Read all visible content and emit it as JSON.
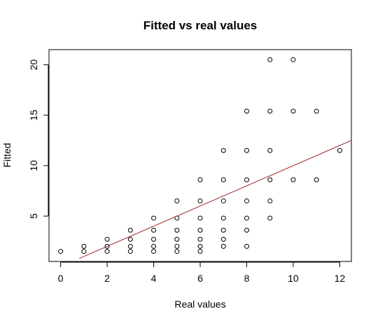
{
  "chart_data": {
    "type": "scatter",
    "title": "Fitted vs real values",
    "xlabel": "Real values",
    "ylabel": "Fitted",
    "xlim": [
      -0.5,
      12.5
    ],
    "ylim": [
      0.5,
      21.5
    ],
    "xticks": [
      0,
      2,
      4,
      6,
      8,
      10,
      12
    ],
    "yticks": [
      5,
      10,
      15,
      20
    ],
    "grid": false,
    "legend": "none",
    "points": [
      {
        "x": 0,
        "y": 1.5
      },
      {
        "x": 1,
        "y": 1.5
      },
      {
        "x": 1,
        "y": 2.0
      },
      {
        "x": 2,
        "y": 1.5
      },
      {
        "x": 2,
        "y": 2.0
      },
      {
        "x": 2,
        "y": 2.7
      },
      {
        "x": 3,
        "y": 1.5
      },
      {
        "x": 3,
        "y": 2.0
      },
      {
        "x": 3,
        "y": 2.7
      },
      {
        "x": 3,
        "y": 3.6
      },
      {
        "x": 4,
        "y": 1.5
      },
      {
        "x": 4,
        "y": 2.0
      },
      {
        "x": 4,
        "y": 2.7
      },
      {
        "x": 4,
        "y": 3.6
      },
      {
        "x": 4,
        "y": 4.8
      },
      {
        "x": 5,
        "y": 1.5
      },
      {
        "x": 5,
        "y": 2.0
      },
      {
        "x": 5,
        "y": 2.7
      },
      {
        "x": 5,
        "y": 3.6
      },
      {
        "x": 5,
        "y": 4.8
      },
      {
        "x": 5,
        "y": 6.5
      },
      {
        "x": 6,
        "y": 1.5
      },
      {
        "x": 6,
        "y": 2.0
      },
      {
        "x": 6,
        "y": 2.7
      },
      {
        "x": 6,
        "y": 3.6
      },
      {
        "x": 6,
        "y": 4.8
      },
      {
        "x": 6,
        "y": 6.5
      },
      {
        "x": 6,
        "y": 8.6
      },
      {
        "x": 7,
        "y": 2.0
      },
      {
        "x": 7,
        "y": 2.7
      },
      {
        "x": 7,
        "y": 3.6
      },
      {
        "x": 7,
        "y": 4.8
      },
      {
        "x": 7,
        "y": 6.5
      },
      {
        "x": 7,
        "y": 8.6
      },
      {
        "x": 7,
        "y": 11.5
      },
      {
        "x": 8,
        "y": 2.0
      },
      {
        "x": 8,
        "y": 3.6
      },
      {
        "x": 8,
        "y": 4.8
      },
      {
        "x": 8,
        "y": 6.5
      },
      {
        "x": 8,
        "y": 8.6
      },
      {
        "x": 8,
        "y": 11.5
      },
      {
        "x": 8,
        "y": 15.4
      },
      {
        "x": 9,
        "y": 4.8
      },
      {
        "x": 9,
        "y": 6.5
      },
      {
        "x": 9,
        "y": 8.6
      },
      {
        "x": 9,
        "y": 11.5
      },
      {
        "x": 9,
        "y": 15.4
      },
      {
        "x": 9,
        "y": 20.5
      },
      {
        "x": 10,
        "y": 8.6
      },
      {
        "x": 10,
        "y": 15.4
      },
      {
        "x": 10,
        "y": 20.5
      },
      {
        "x": 11,
        "y": 8.6
      },
      {
        "x": 11,
        "y": 15.4
      },
      {
        "x": 12,
        "y": 11.5
      }
    ],
    "fit_line": {
      "x": [
        0.8,
        12.5
      ],
      "y": [
        0.8,
        12.5
      ],
      "color": "#a52a2a"
    },
    "point_color": "#000000"
  }
}
